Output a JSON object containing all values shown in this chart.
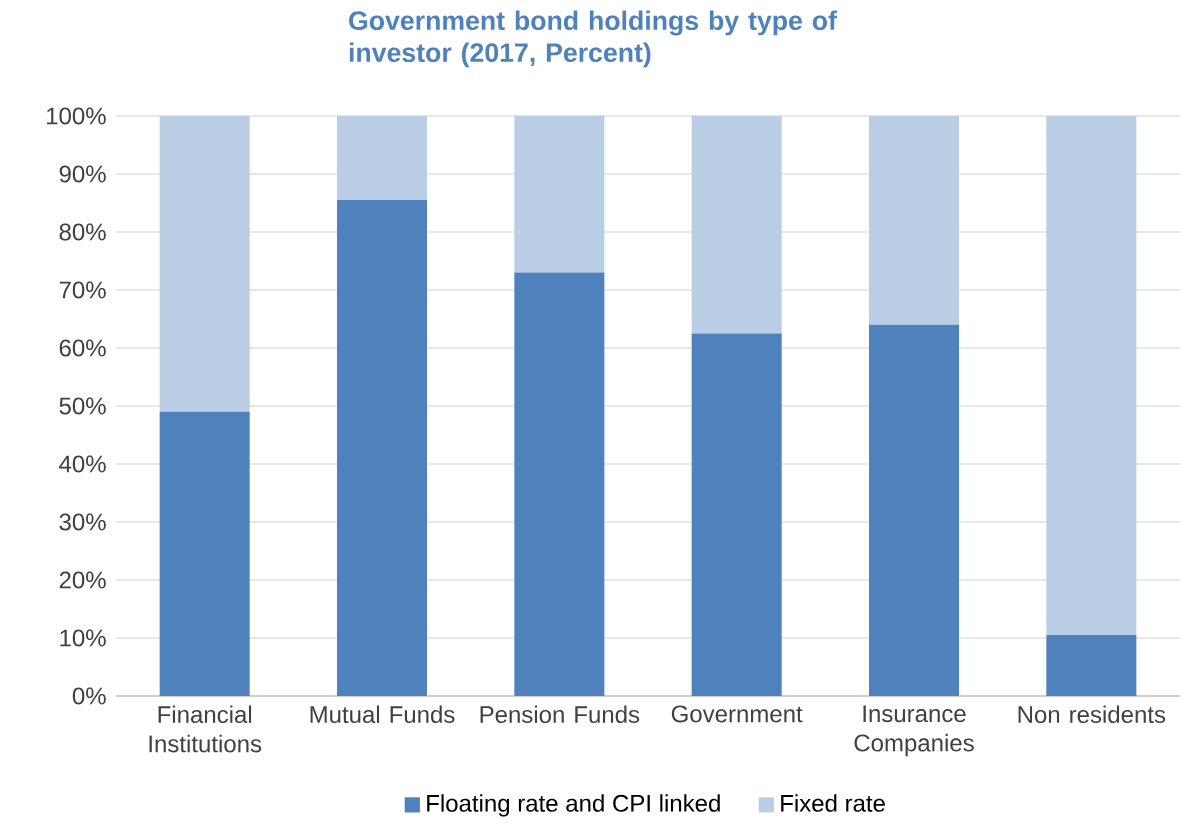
{
  "chart_data": {
    "type": "bar",
    "title": "Government bond holdings by type of investor (2017, Percent)",
    "stacked": true,
    "categories": [
      "Financial Institutions",
      "Mutual Funds",
      "Pension Funds",
      "Government",
      "Insurance Companies",
      "Non residents"
    ],
    "series": [
      {
        "name": "Floating rate and CPI linked",
        "color": "#4f81bd",
        "values": [
          49,
          85.5,
          73,
          62.5,
          64,
          10.5
        ]
      },
      {
        "name": "Fixed rate",
        "color": "#b9cde5",
        "values": [
          51,
          14.5,
          27,
          37.5,
          36,
          89.5
        ]
      }
    ],
    "ylim": [
      0,
      100
    ],
    "yticks": [
      {
        "value": 0,
        "label": "0%"
      },
      {
        "value": 10,
        "label": "10%"
      },
      {
        "value": 20,
        "label": "20%"
      },
      {
        "value": 30,
        "label": "30%"
      },
      {
        "value": 40,
        "label": "40%"
      },
      {
        "value": 50,
        "label": "50%"
      },
      {
        "value": 60,
        "label": "60%"
      },
      {
        "value": 70,
        "label": "70%"
      },
      {
        "value": 80,
        "label": "80%"
      },
      {
        "value": 90,
        "label": "90%"
      },
      {
        "value": 100,
        "label": "100%"
      }
    ],
    "grid": "y",
    "legend": "bottom"
  }
}
